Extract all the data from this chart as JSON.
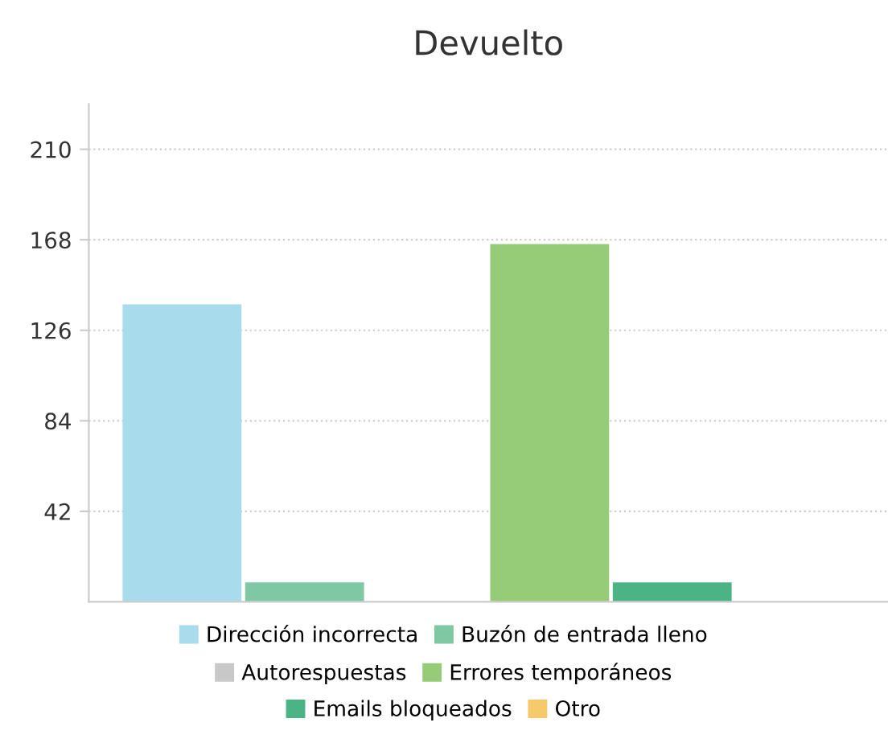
{
  "chart_data": {
    "type": "bar",
    "title": "Devuelto",
    "categories": [
      null
    ],
    "series": [
      {
        "name": "Dirección incorrecta",
        "color": "#a8dbec",
        "values": [
          138
        ]
      },
      {
        "name": "Buzón de entrada lleno",
        "color": "#7fc8a4",
        "values": [
          9
        ]
      },
      {
        "name": "Autorespuestas",
        "color": "#c8c8c8",
        "values": [
          0
        ]
      },
      {
        "name": "Errores temporáneos",
        "color": "#96cb78",
        "values": [
          166
        ]
      },
      {
        "name": "Emails bloqueados",
        "color": "#4bb384",
        "values": [
          9
        ]
      },
      {
        "name": "Otro",
        "color": "#f6c96a",
        "values": [
          0
        ]
      }
    ],
    "ylim": [
      0,
      231
    ],
    "yticks": [
      42,
      84,
      126,
      168,
      210
    ],
    "grid": "y",
    "legend": "bottom"
  }
}
